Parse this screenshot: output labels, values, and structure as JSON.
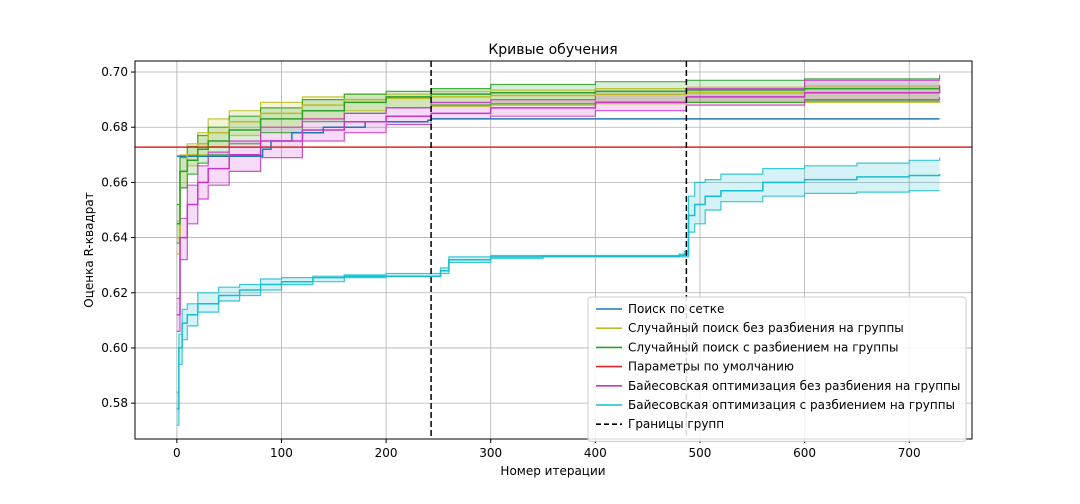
{
  "chart_data": {
    "type": "line",
    "title": "Кривые обучения",
    "xlabel": "Номер итерации",
    "ylabel": "Оценка R-квадрат",
    "xlim": [
      -40,
      760
    ],
    "ylim": [
      0.567,
      0.704
    ],
    "xticks": [
      0,
      100,
      200,
      300,
      400,
      500,
      600,
      700
    ],
    "yticks": [
      0.58,
      0.6,
      0.62,
      0.64,
      0.66,
      0.68,
      0.7
    ],
    "grid": true,
    "legend_position": "lower-right",
    "vlines": [
      {
        "x": 243,
        "name": "Границы групп",
        "color": "#000000"
      },
      {
        "x": 487,
        "name": "Границы групп",
        "color": "#000000"
      }
    ],
    "hline": {
      "y": 0.6728,
      "name": "Параметры по умолчанию",
      "color": "#d62728"
    },
    "series": [
      {
        "name": "Поиск по сетке",
        "color": "#1f77b4",
        "x": [
          0,
          80,
          82,
          90,
          110,
          140,
          180,
          240,
          243,
          729
        ],
        "y": [
          0.6695,
          0.6695,
          0.672,
          0.675,
          0.678,
          0.68,
          0.682,
          0.6825,
          0.683,
          0.683
        ]
      },
      {
        "name": "Случайный поиск без разбиения на группы",
        "color": "#bcbd22",
        "x": [
          0,
          3,
          10,
          20,
          30,
          50,
          80,
          120,
          160,
          200,
          243,
          300,
          400,
          487,
          600,
          729
        ],
        "y": [
          0.64,
          0.664,
          0.67,
          0.674,
          0.678,
          0.682,
          0.685,
          0.688,
          0.69,
          0.6905,
          0.691,
          0.6915,
          0.692,
          0.6925,
          0.6925,
          0.693
        ],
        "band_low": [
          0.634,
          0.658,
          0.666,
          0.67,
          0.673,
          0.677,
          0.68,
          0.683,
          0.686,
          0.687,
          0.6875,
          0.688,
          0.6885,
          0.689,
          0.689,
          0.6895
        ],
        "band_high": [
          0.646,
          0.67,
          0.674,
          0.678,
          0.683,
          0.686,
          0.689,
          0.691,
          0.692,
          0.692,
          0.693,
          0.6935,
          0.694,
          0.6945,
          0.695,
          0.6955
        ]
      },
      {
        "name": "Случайный поиск с разбиением на группы",
        "color": "#2ca02c",
        "x": [
          0,
          3,
          10,
          20,
          30,
          50,
          80,
          120,
          160,
          200,
          243,
          300,
          400,
          487,
          600,
          729
        ],
        "y": [
          0.645,
          0.664,
          0.668,
          0.672,
          0.675,
          0.679,
          0.683,
          0.686,
          0.689,
          0.691,
          0.692,
          0.6925,
          0.693,
          0.6935,
          0.694,
          0.694
        ],
        "band_low": [
          0.638,
          0.658,
          0.663,
          0.667,
          0.67,
          0.674,
          0.678,
          0.682,
          0.685,
          0.687,
          0.688,
          0.6885,
          0.689,
          0.689,
          0.6895,
          0.6895
        ],
        "band_high": [
          0.652,
          0.669,
          0.673,
          0.677,
          0.68,
          0.684,
          0.687,
          0.69,
          0.692,
          0.693,
          0.694,
          0.6955,
          0.6965,
          0.697,
          0.6975,
          0.6975
        ]
      },
      {
        "name": "Байесовская оптимизация без разбиения на группы",
        "color": "#c935c9",
        "x": [
          0,
          3,
          10,
          20,
          30,
          50,
          80,
          120,
          160,
          200,
          243,
          300,
          400,
          487,
          600,
          729
        ],
        "y": [
          0.612,
          0.64,
          0.652,
          0.66,
          0.665,
          0.67,
          0.675,
          0.679,
          0.682,
          0.684,
          0.685,
          0.687,
          0.689,
          0.691,
          0.6925,
          0.695
        ],
        "band_low": [
          0.606,
          0.632,
          0.645,
          0.654,
          0.659,
          0.664,
          0.669,
          0.675,
          0.678,
          0.681,
          0.683,
          0.684,
          0.686,
          0.688,
          0.69,
          0.691
        ],
        "band_high": [
          0.618,
          0.647,
          0.659,
          0.666,
          0.671,
          0.675,
          0.68,
          0.683,
          0.685,
          0.687,
          0.689,
          0.69,
          0.692,
          0.694,
          0.697,
          0.699
        ]
      },
      {
        "name": "Байесовская оптимизация с разбиением на группы",
        "color": "#17becf",
        "x": [
          0,
          2,
          5,
          10,
          20,
          40,
          60,
          80,
          100,
          130,
          160,
          200,
          243,
          252,
          260,
          300,
          350,
          400,
          480,
          485,
          489,
          495,
          505,
          520,
          560,
          600,
          650,
          700,
          729
        ],
        "y": [
          0.578,
          0.6,
          0.609,
          0.612,
          0.616,
          0.619,
          0.621,
          0.623,
          0.624,
          0.6255,
          0.626,
          0.626,
          0.626,
          0.628,
          0.632,
          0.633,
          0.6332,
          0.6332,
          0.6335,
          0.634,
          0.648,
          0.652,
          0.655,
          0.657,
          0.66,
          0.661,
          0.662,
          0.6625,
          0.663
        ],
        "band_low": [
          0.572,
          0.594,
          0.603,
          0.608,
          0.613,
          0.617,
          0.619,
          0.621,
          0.623,
          0.624,
          0.6255,
          0.626,
          0.626,
          0.627,
          0.631,
          0.6325,
          0.633,
          0.633,
          0.633,
          0.633,
          0.642,
          0.645,
          0.65,
          0.653,
          0.655,
          0.656,
          0.6565,
          0.657,
          0.657
        ],
        "band_high": [
          0.584,
          0.605,
          0.614,
          0.616,
          0.62,
          0.622,
          0.623,
          0.625,
          0.6255,
          0.626,
          0.6265,
          0.627,
          0.627,
          0.629,
          0.633,
          0.6335,
          0.6335,
          0.6335,
          0.634,
          0.635,
          0.655,
          0.66,
          0.661,
          0.663,
          0.665,
          0.666,
          0.667,
          0.668,
          0.669
        ]
      }
    ],
    "legend": [
      {
        "label": "Поиск по сетке",
        "color": "#1f77b4",
        "style": "solid"
      },
      {
        "label": "Случайный поиск без разбиения на группы",
        "color": "#bcbd22",
        "style": "solid"
      },
      {
        "label": "Случайный поиск с разбиением на группы",
        "color": "#2ca02c",
        "style": "solid"
      },
      {
        "label": "Параметры по умолчанию",
        "color": "#d62728",
        "style": "solid"
      },
      {
        "label": "Байесовская оптимизация без разбиения на группы",
        "color": "#c935c9",
        "style": "solid"
      },
      {
        "label": "Байесовская оптимизация с разбиением на группы",
        "color": "#17becf",
        "style": "solid"
      },
      {
        "label": "Границы групп",
        "color": "#000000",
        "style": "dashed"
      }
    ]
  }
}
